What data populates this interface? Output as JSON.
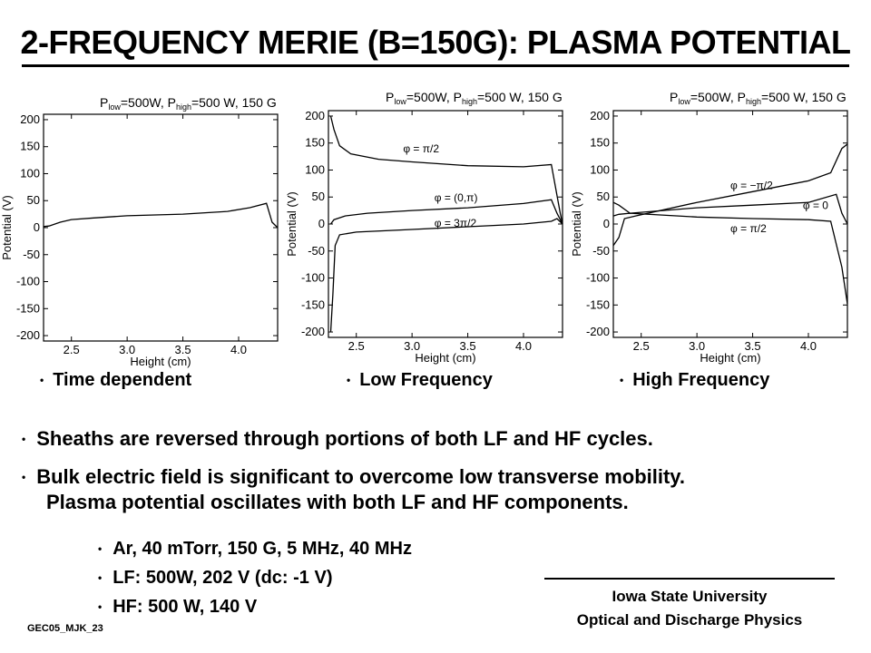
{
  "slide": {
    "title": "2-FREQUENCY MERIE (B=150G):  PLASMA POTENTIAL",
    "bullet_symbol": "•",
    "captions": [
      "Time dependent",
      "Low Frequency",
      "High Frequency"
    ],
    "bullets": [
      "Sheaths are reversed through portions of both LF and HF cycles.",
      "Bulk electric field is significant to overcome low transverse mobility.",
      "Plasma potential oscillates with both LF and HF components."
    ],
    "sub_bullets": [
      "Ar, 40 mTorr,  150 G, 5 MHz, 40 MHz",
      "LF: 500W, 202 V (dc: -1 V)",
      "HF: 500 W, 140 V"
    ],
    "affiliation": [
      "Iowa State University",
      "Optical and Discharge Physics"
    ],
    "code": "GEC05_MJK_23"
  },
  "chart_data": [
    {
      "type": "line",
      "title": "P_low=500W, P_high=500 W, 150 G",
      "xlabel": "Height (cm)",
      "ylabel": "Potential (V)",
      "xlim": [
        2.25,
        4.35
      ],
      "ylim": [
        -210,
        210
      ],
      "xticks": [
        2.5,
        3.0,
        3.5,
        4.0
      ],
      "yticks": [
        -200,
        -150,
        -100,
        -50,
        0,
        50,
        100,
        150,
        200
      ],
      "series": [
        {
          "x": [
            2.25,
            2.3,
            2.4,
            2.5,
            2.7,
            3.0,
            3.5,
            3.9,
            4.1,
            4.25,
            4.3,
            4.35
          ],
          "y": [
            2,
            3,
            10,
            15,
            18,
            22,
            25,
            30,
            37,
            45,
            10,
            0
          ]
        }
      ]
    },
    {
      "type": "line",
      "title": "P_low=500W, P_high=500 W, 150 G",
      "xlabel": "Height (cm)",
      "ylabel": "Potential (V)",
      "xlim": [
        2.25,
        4.35
      ],
      "ylim": [
        -210,
        210
      ],
      "xticks": [
        2.5,
        3.0,
        3.5,
        4.0
      ],
      "yticks": [
        -200,
        -150,
        -100,
        -50,
        0,
        50,
        100,
        150,
        200
      ],
      "annotations": [
        {
          "text": "φ = π/2",
          "x": 2.92,
          "y": 133
        },
        {
          "text": "φ = (0,π)",
          "x": 3.2,
          "y": 42
        },
        {
          "text": "φ = 3π/2",
          "x": 3.2,
          "y": -5
        }
      ],
      "series": [
        {
          "x": [
            2.27,
            2.3,
            2.35,
            2.45,
            2.7,
            3.0,
            3.5,
            4.0,
            4.25,
            4.33,
            4.35
          ],
          "y": [
            200,
            175,
            145,
            130,
            120,
            115,
            108,
            106,
            110,
            20,
            0
          ]
        },
        {
          "x": [
            2.27,
            2.3,
            2.4,
            2.6,
            3.0,
            3.5,
            4.0,
            4.25,
            4.3,
            4.35
          ],
          "y": [
            0,
            8,
            15,
            20,
            25,
            30,
            38,
            45,
            20,
            0
          ]
        },
        {
          "x": [
            2.27,
            2.29,
            2.31,
            2.35,
            2.5,
            3.0,
            3.5,
            4.0,
            4.25,
            4.3,
            4.35
          ],
          "y": [
            -200,
            -130,
            -40,
            -20,
            -15,
            -10,
            -5,
            0,
            5,
            10,
            0
          ]
        }
      ]
    },
    {
      "type": "line",
      "title": "P_low=500W, P_high=500 W, 150 G",
      "xlabel": "Height (cm)",
      "ylabel": "Potential (V)",
      "xlim": [
        2.25,
        4.35
      ],
      "ylim": [
        -210,
        210
      ],
      "xticks": [
        2.5,
        3.0,
        3.5,
        4.0
      ],
      "yticks": [
        -200,
        -150,
        -100,
        -50,
        0,
        50,
        100,
        150,
        200
      ],
      "annotations": [
        {
          "text": "φ = −π/2",
          "x": 3.3,
          "y": 65
        },
        {
          "text": "φ = 0",
          "x": 3.95,
          "y": 28
        },
        {
          "text": "φ = π/2",
          "x": 3.3,
          "y": -15
        }
      ],
      "series": [
        {
          "x": [
            2.25,
            2.3,
            2.35,
            2.45,
            3.0,
            3.5,
            4.0,
            4.2,
            4.3,
            4.35
          ],
          "y": [
            -40,
            -25,
            10,
            15,
            40,
            60,
            80,
            95,
            140,
            148
          ]
        },
        {
          "x": [
            2.25,
            2.3,
            2.4,
            3.0,
            3.5,
            4.0,
            4.25,
            4.3,
            4.35
          ],
          "y": [
            40,
            35,
            20,
            30,
            35,
            40,
            55,
            20,
            0
          ]
        },
        {
          "x": [
            2.25,
            2.3,
            2.4,
            3.0,
            3.5,
            4.0,
            4.2,
            4.3,
            4.35
          ],
          "y": [
            15,
            18,
            20,
            13,
            10,
            8,
            5,
            -80,
            -148
          ]
        }
      ]
    }
  ]
}
